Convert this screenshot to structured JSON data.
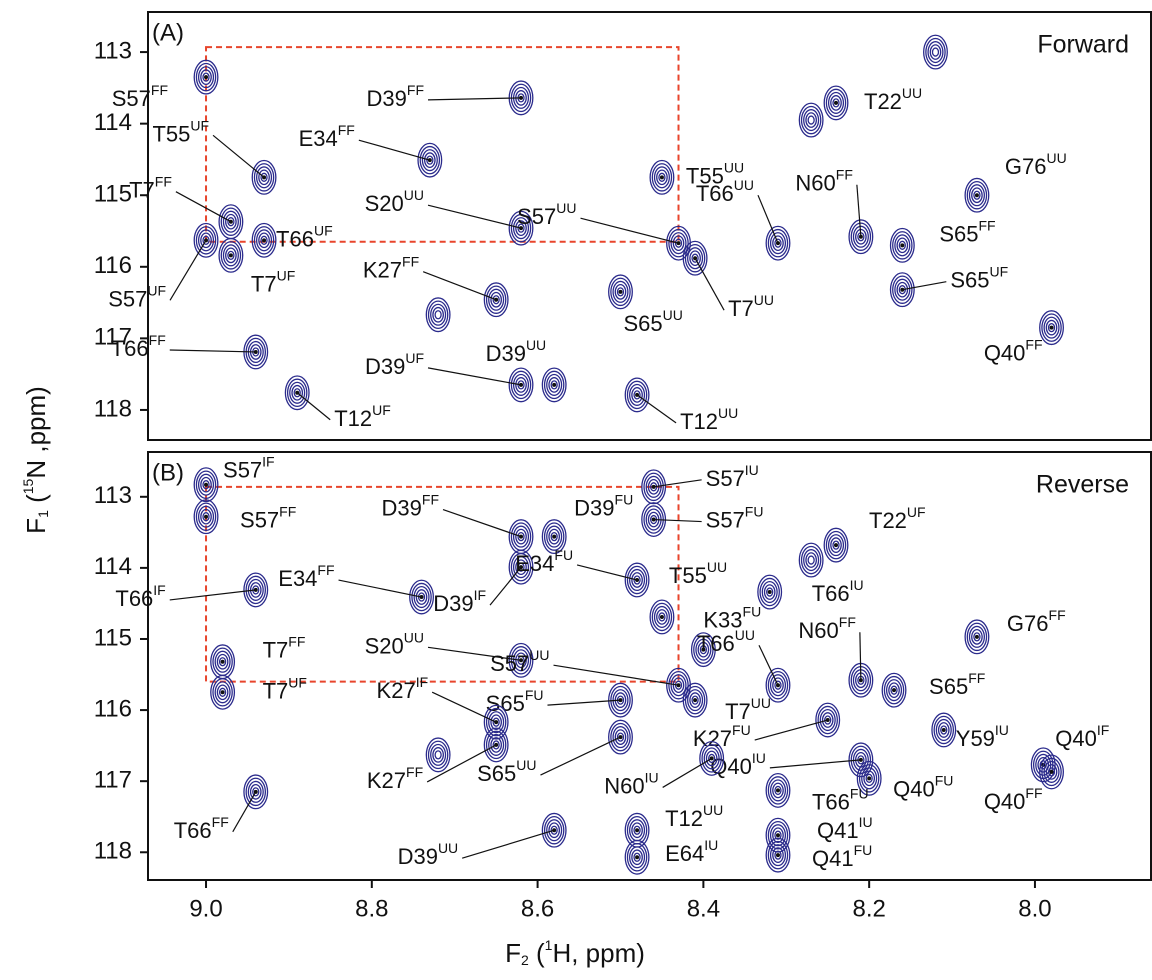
{
  "ylabel": {
    "main": "F",
    "sub": "1",
    "pre": " (",
    "sup": "15",
    "post": "N ,ppm)"
  },
  "xlabel": {
    "main": "F",
    "sub": "2",
    "pre": " (",
    "sup": "1",
    "post": "H, ppm)"
  },
  "chart_data": [
    {
      "type": "contour",
      "panel": "(A)",
      "title": "Forward",
      "color": "#2b2b8c",
      "xlim": [
        9.07,
        7.86
      ],
      "ylim": [
        112.44,
        118.42
      ],
      "yticks": [
        113,
        114,
        115,
        116,
        117,
        118
      ],
      "highlight": {
        "x": [
          9.0,
          8.43
        ],
        "y": [
          112.93,
          115.65
        ],
        "color": "#e8452c"
      },
      "peaks": {
        "x": [
          9.0,
          8.62,
          8.73,
          8.93,
          8.97,
          8.93,
          9.0,
          8.97,
          8.62,
          8.65,
          8.72,
          8.94,
          8.89,
          8.62,
          8.58,
          8.5,
          8.48,
          8.43,
          8.41,
          8.45,
          8.24,
          8.27,
          8.31,
          8.21,
          8.16,
          8.16,
          8.07,
          7.98,
          8.12
        ],
        "y": [
          113.35,
          113.64,
          114.51,
          114.75,
          115.37,
          115.63,
          115.63,
          115.84,
          115.46,
          116.46,
          116.67,
          117.19,
          117.76,
          117.65,
          117.65,
          116.35,
          117.79,
          115.67,
          115.88,
          114.75,
          113.71,
          113.95,
          115.67,
          115.58,
          115.7,
          116.32,
          115.0,
          116.85,
          113.0
        ],
        "labels": [
          {
            "text": "S57",
            "sup": "FF"
          },
          {
            "text": "D39",
            "sup": "FF"
          },
          {
            "text": "E34",
            "sup": "FF"
          },
          {
            "text": "T55",
            "sup": "UF"
          },
          {
            "text": "T7",
            "sup": "FF"
          },
          {
            "text": "T66",
            "sup": "UF"
          },
          {
            "text": "S57",
            "sup": "UF"
          },
          {
            "text": "T7",
            "sup": "UF"
          },
          {
            "text": "S20",
            "sup": "UU"
          },
          {
            "text": "K27",
            "sup": "FF"
          },
          null,
          {
            "text": "T66",
            "sup": "FF"
          },
          {
            "text": "T12",
            "sup": "UF"
          },
          {
            "text": "D39",
            "sup": "UF"
          },
          {
            "text": "D39",
            "sup": "UU"
          },
          {
            "text": "S65",
            "sup": "UU"
          },
          {
            "text": "T12",
            "sup": "UU"
          },
          {
            "text": "S57",
            "sup": "UU"
          },
          {
            "text": "T7",
            "sup": "UU"
          },
          {
            "text": "T55",
            "sup": "UU"
          },
          {
            "text": "T22",
            "sup": "UU"
          },
          null,
          {
            "text": "T66",
            "sup": "UU"
          },
          {
            "text": "N60",
            "sup": "FF"
          },
          {
            "text": "S65",
            "sup": "FF"
          },
          {
            "text": "S65",
            "sup": "UF"
          },
          {
            "text": "G76",
            "sup": "UU"
          },
          {
            "text": "Q40",
            "sup": "FF"
          },
          null
        ]
      }
    },
    {
      "type": "contour",
      "panel": "(B)",
      "title": "Reverse",
      "color": "#2b2b8c",
      "xlim": [
        9.07,
        7.86
      ],
      "ylim": [
        112.37,
        118.39
      ],
      "yticks": [
        113,
        114,
        115,
        116,
        117,
        118
      ],
      "xticks": [
        {
          "value": 9,
          "label": "9.0"
        },
        8.8,
        8.6,
        8.4,
        8.2,
        {
          "value": 8,
          "label": "8.0"
        }
      ],
      "highlight": {
        "x": [
          9.0,
          8.43
        ],
        "y": [
          112.86,
          115.6
        ],
        "color": "#e8452c"
      },
      "peaks": {
        "x": [
          9.0,
          9.0,
          8.94,
          8.74,
          8.62,
          8.58,
          8.62,
          8.46,
          8.46,
          8.24,
          8.27,
          8.48,
          8.45,
          8.32,
          8.4,
          8.98,
          8.98,
          8.62,
          8.43,
          8.41,
          8.5,
          8.31,
          8.21,
          8.17,
          8.11,
          8.65,
          8.65,
          8.25,
          8.5,
          8.21,
          8.2,
          7.99,
          7.98,
          8.39,
          8.48,
          8.48,
          8.31,
          8.31,
          8.31,
          8.94,
          8.58,
          8.07,
          8.72
        ],
        "y": [
          112.83,
          113.28,
          114.31,
          114.41,
          113.56,
          113.56,
          113.99,
          112.86,
          113.32,
          113.68,
          113.89,
          114.17,
          114.69,
          114.34,
          115.15,
          115.32,
          115.75,
          115.3,
          115.65,
          115.86,
          115.86,
          115.65,
          115.58,
          115.72,
          116.28,
          116.17,
          116.49,
          116.14,
          116.38,
          116.7,
          116.96,
          116.77,
          116.87,
          116.68,
          117.69,
          118.07,
          117.76,
          118.04,
          117.13,
          117.15,
          117.69,
          114.97,
          116.63
        ],
        "labels": [
          {
            "text": "S57",
            "sup": "IF"
          },
          {
            "text": "S57",
            "sup": "FF"
          },
          {
            "text": "T66",
            "sup": "IF"
          },
          {
            "text": "E34",
            "sup": "FF"
          },
          {
            "text": "D39",
            "sup": "FF"
          },
          {
            "text": "D39",
            "sup": "FU"
          },
          {
            "text": "D39",
            "sup": "IF"
          },
          {
            "text": "S57",
            "sup": "IU"
          },
          {
            "text": "S57",
            "sup": "FU"
          },
          {
            "text": "T22",
            "sup": "UF"
          },
          null,
          {
            "text": "E34",
            "sup": "FU"
          },
          {
            "text": "T55",
            "sup": "UU"
          },
          {
            "text": "T66",
            "sup": "IU"
          },
          {
            "text": "K33",
            "sup": "FU"
          },
          {
            "text": "T7",
            "sup": "FF"
          },
          {
            "text": "T7",
            "sup": "UF"
          },
          {
            "text": "S20",
            "sup": "UU"
          },
          {
            "text": "S57",
            "sup": "UU"
          },
          {
            "text": "T7",
            "sup": "UU"
          },
          {
            "text": "S65",
            "sup": "FU"
          },
          {
            "text": "T66",
            "sup": "UU"
          },
          {
            "text": "N60",
            "sup": "FF"
          },
          {
            "text": "S65",
            "sup": "FF"
          },
          {
            "text": "Y59",
            "sup": "IU"
          },
          {
            "text": "K27",
            "sup": "IF"
          },
          {
            "text": "K27",
            "sup": "FF"
          },
          {
            "text": "K27",
            "sup": "FU"
          },
          {
            "text": "S65",
            "sup": "UU"
          },
          {
            "text": "Q40",
            "sup": "IU"
          },
          {
            "text": "Q40",
            "sup": "FU"
          },
          {
            "text": "Q40",
            "sup": "IF"
          },
          {
            "text": "Q40",
            "sup": "FF"
          },
          {
            "text": "N60",
            "sup": "IU"
          },
          {
            "text": "T12",
            "sup": "UU"
          },
          {
            "text": "E64",
            "sup": "IU"
          },
          {
            "text": "Q41",
            "sup": "IU"
          },
          {
            "text": "Q41",
            "sup": "FU"
          },
          {
            "text": "T66",
            "sup": "FU"
          },
          {
            "text": "T66",
            "sup": "FF"
          },
          {
            "text": "D39",
            "sup": "UU"
          },
          {
            "text": "G76",
            "sup": "FF"
          },
          null
        ]
      }
    }
  ]
}
